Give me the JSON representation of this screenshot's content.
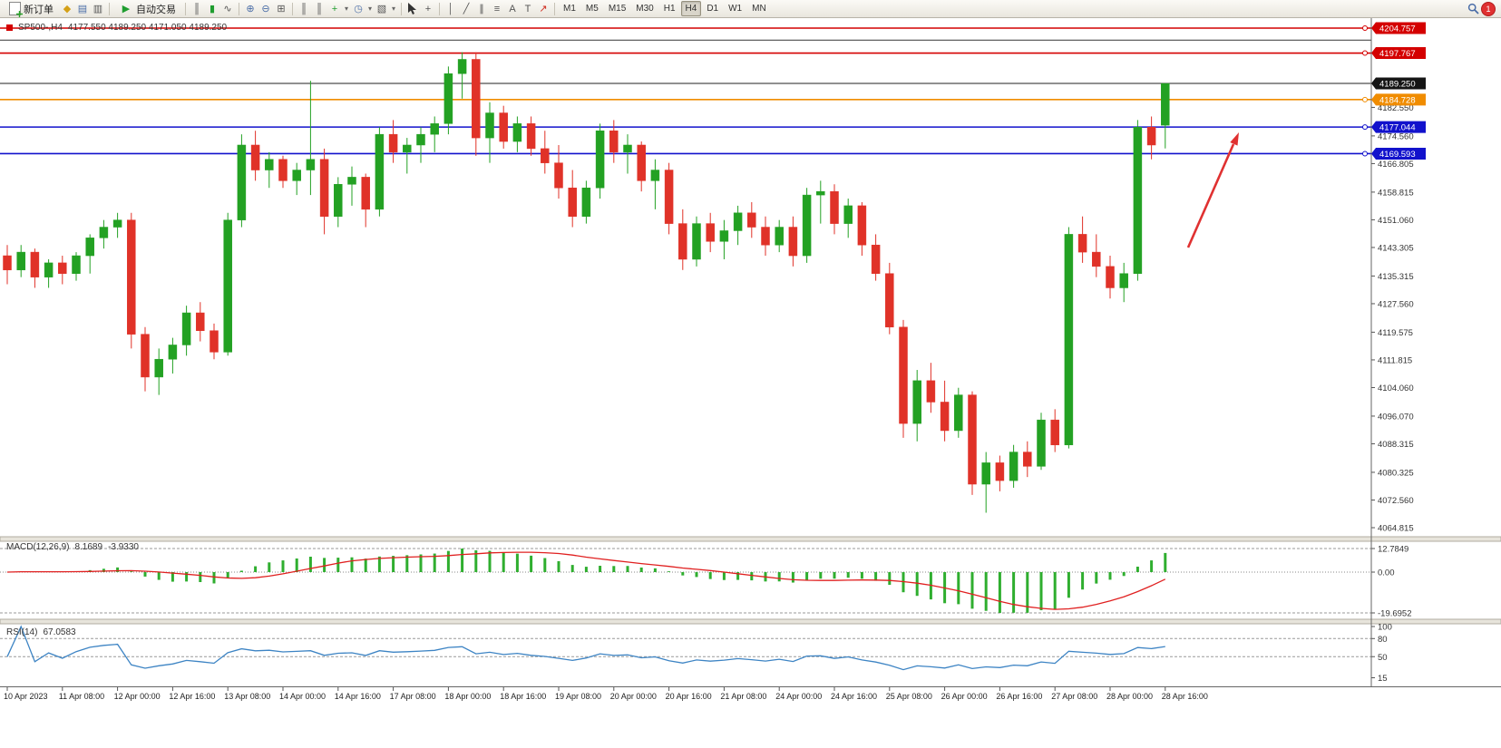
{
  "toolbar": {
    "new_order_label": "新订单",
    "auto_trading_label": "自动交易",
    "timeframes": [
      "M1",
      "M5",
      "M15",
      "M30",
      "H1",
      "H4",
      "D1",
      "W1",
      "MN"
    ],
    "active_timeframe": "H4",
    "notification_count": "1",
    "icons": {
      "diamond": "◆",
      "market_watch": "▤",
      "navigator": "▥",
      "play": "▶",
      "bar_chart": "║",
      "candle_chart": "▮",
      "line_chart": "∿",
      "zoom_in": "⊕",
      "zoom_out": "⊖",
      "tile": "⊞",
      "indicators": "+",
      "period": "◷",
      "template": "▧",
      "crosshair": "+",
      "vline": "│",
      "trendline": "╱",
      "channel": "∥",
      "fibo": "≡",
      "text": "A",
      "label": "T",
      "arrows": "↗",
      "dropdown": "▾"
    }
  },
  "chart": {
    "title_symbol": "SP500-,H4",
    "title_ohlc": "4177.550 4189.250 4171.050 4189.250",
    "colors": {
      "up": "#23a123",
      "down": "#e03228",
      "red_line": "#d40000",
      "orange_line": "#f08c00",
      "blue_line": "#1212cc",
      "black_line": "#333333"
    },
    "hlines": [
      {
        "price": 4204.757,
        "label": "4204.757",
        "color": "red"
      },
      {
        "price": 4201.4,
        "label": "",
        "color": "black"
      },
      {
        "price": 4197.767,
        "label": "4197.767",
        "color": "red"
      },
      {
        "price": 4184.728,
        "label": "4184.728",
        "color": "orange"
      },
      {
        "price": 4177.044,
        "label": "4177.044",
        "color": "blue"
      },
      {
        "price": 4169.593,
        "label": "4169.593",
        "color": "blue"
      }
    ],
    "current_price": {
      "price": 4189.25,
      "label": "4189.250"
    },
    "axis_labels": [
      "4182.550",
      "4174.560",
      "4166.805",
      "4158.815",
      "4151.060",
      "4143.305",
      "4135.315",
      "4127.560",
      "4119.575",
      "4111.815",
      "4104.060",
      "4096.070",
      "4088.315",
      "4080.325",
      "4072.560",
      "4064.815"
    ],
    "candles": [
      [
        4141,
        4144,
        4133,
        4137
      ],
      [
        4137,
        4144,
        4135,
        4142
      ],
      [
        4142,
        4143,
        4132,
        4135
      ],
      [
        4135,
        4140,
        4132,
        4139
      ],
      [
        4139,
        4141,
        4133,
        4136
      ],
      [
        4136,
        4142,
        4134,
        4141
      ],
      [
        4141,
        4147,
        4136,
        4146
      ],
      [
        4146,
        4151,
        4143,
        4149
      ],
      [
        4149,
        4153,
        4146,
        4151
      ],
      [
        4151,
        4153,
        4115,
        4119
      ],
      [
        4119,
        4121,
        4103,
        4107
      ],
      [
        4107,
        4115,
        4102,
        4112
      ],
      [
        4112,
        4118,
        4108,
        4116
      ],
      [
        4116,
        4127,
        4113,
        4125
      ],
      [
        4125,
        4128,
        4117,
        4120
      ],
      [
        4120,
        4122,
        4112,
        4114
      ],
      [
        4114,
        4153,
        4113,
        4151
      ],
      [
        4151,
        4175,
        4149,
        4172
      ],
      [
        4172,
        4176,
        4162,
        4165
      ],
      [
        4165,
        4170,
        4160,
        4168
      ],
      [
        4168,
        4169,
        4160,
        4162
      ],
      [
        4162,
        4167,
        4158,
        4165
      ],
      [
        4165,
        4190,
        4158,
        4168
      ],
      [
        4168,
        4171,
        4147,
        4152
      ],
      [
        4152,
        4163,
        4149,
        4161
      ],
      [
        4161,
        4166,
        4155,
        4163
      ],
      [
        4163,
        4164,
        4149,
        4154
      ],
      [
        4154,
        4177,
        4152,
        4175
      ],
      [
        4175,
        4179,
        4167,
        4170
      ],
      [
        4170,
        4174,
        4164,
        4172
      ],
      [
        4172,
        4177,
        4167,
        4175
      ],
      [
        4175,
        4180,
        4170,
        4178
      ],
      [
        4178,
        4194,
        4175,
        4192
      ],
      [
        4192,
        4198,
        4185,
        4196
      ],
      [
        4196,
        4198,
        4169,
        4174
      ],
      [
        4174,
        4184,
        4167,
        4181
      ],
      [
        4181,
        4183,
        4171,
        4173
      ],
      [
        4173,
        4180,
        4170,
        4178
      ],
      [
        4178,
        4180,
        4169,
        4171
      ],
      [
        4171,
        4176,
        4164,
        4167
      ],
      [
        4167,
        4172,
        4157,
        4160
      ],
      [
        4160,
        4165,
        4149,
        4152
      ],
      [
        4152,
        4162,
        4150,
        4160
      ],
      [
        4160,
        4178,
        4157,
        4176
      ],
      [
        4176,
        4179,
        4167,
        4170
      ],
      [
        4170,
        4175,
        4164,
        4172
      ],
      [
        4172,
        4173,
        4159,
        4162
      ],
      [
        4162,
        4168,
        4154,
        4165
      ],
      [
        4165,
        4167,
        4147,
        4150
      ],
      [
        4150,
        4154,
        4137,
        4140
      ],
      [
        4140,
        4152,
        4138,
        4150
      ],
      [
        4150,
        4153,
        4142,
        4145
      ],
      [
        4145,
        4151,
        4140,
        4148
      ],
      [
        4148,
        4155,
        4144,
        4153
      ],
      [
        4153,
        4156,
        4146,
        4149
      ],
      [
        4149,
        4152,
        4141,
        4144
      ],
      [
        4144,
        4151,
        4142,
        4149
      ],
      [
        4149,
        4152,
        4138,
        4141
      ],
      [
        4141,
        4160,
        4139,
        4158
      ],
      [
        4158,
        4162,
        4150,
        4159
      ],
      [
        4159,
        4161,
        4147,
        4150
      ],
      [
        4150,
        4157,
        4146,
        4155
      ],
      [
        4155,
        4156,
        4141,
        4144
      ],
      [
        4144,
        4147,
        4134,
        4136
      ],
      [
        4136,
        4139,
        4119,
        4121
      ],
      [
        4121,
        4123,
        4090,
        4094
      ],
      [
        4094,
        4109,
        4089,
        4106
      ],
      [
        4106,
        4111,
        4097,
        4100
      ],
      [
        4100,
        4106,
        4089,
        4092
      ],
      [
        4092,
        4104,
        4090,
        4102
      ],
      [
        4102,
        4103,
        4074,
        4077
      ],
      [
        4077,
        4086,
        4069,
        4083
      ],
      [
        4083,
        4085,
        4075,
        4078
      ],
      [
        4078,
        4088,
        4076,
        4086
      ],
      [
        4086,
        4089,
        4079,
        4082
      ],
      [
        4082,
        4097,
        4081,
        4095
      ],
      [
        4095,
        4098,
        4086,
        4088
      ],
      [
        4088,
        4149,
        4087,
        4147
      ],
      [
        4147,
        4152,
        4139,
        4142
      ],
      [
        4142,
        4147,
        4135,
        4138
      ],
      [
        4138,
        4141,
        4129,
        4132
      ],
      [
        4132,
        4139,
        4128,
        4136
      ],
      [
        4136,
        4179,
        4134,
        4177
      ],
      [
        4177,
        4180,
        4168,
        4172
      ],
      [
        4177.55,
        4189.25,
        4171.05,
        4189.25
      ]
    ]
  },
  "macd": {
    "title": "MACD(12,26,9)",
    "value_main": "8.1689",
    "value_signal": "-3.9330",
    "axis": [
      "12.7849",
      "0.00",
      "-19.6952"
    ],
    "params": {
      "fast": 12,
      "slow": 26,
      "signal": 9
    },
    "colors": {
      "histogram": "#2fae2f",
      "signal": "#e02020"
    }
  },
  "rsi": {
    "title": "RSI(14)",
    "value": "67.0583",
    "period": 14,
    "axis": [
      "100",
      "80",
      "50",
      "15"
    ],
    "levels": [
      80,
      50
    ],
    "color": "#3d84c4"
  },
  "time_axis": [
    "10 Apr 2023",
    "11 Apr 08:00",
    "12 Apr 00:00",
    "12 Apr 16:00",
    "13 Apr 08:00",
    "14 Apr 00:00",
    "14 Apr 16:00",
    "17 Apr 08:00",
    "18 Apr 00:00",
    "18 Apr 16:00",
    "19 Apr 08:00",
    "20 Apr 00:00",
    "20 Apr 16:00",
    "21 Apr 08:00",
    "24 Apr 00:00",
    "24 Apr 16:00",
    "25 Apr 08:00",
    "26 Apr 00:00",
    "26 Apr 16:00",
    "27 Apr 08:00",
    "28 Apr 00:00",
    "28 Apr 16:00"
  ],
  "annotation": {
    "color": "#e03131"
  }
}
